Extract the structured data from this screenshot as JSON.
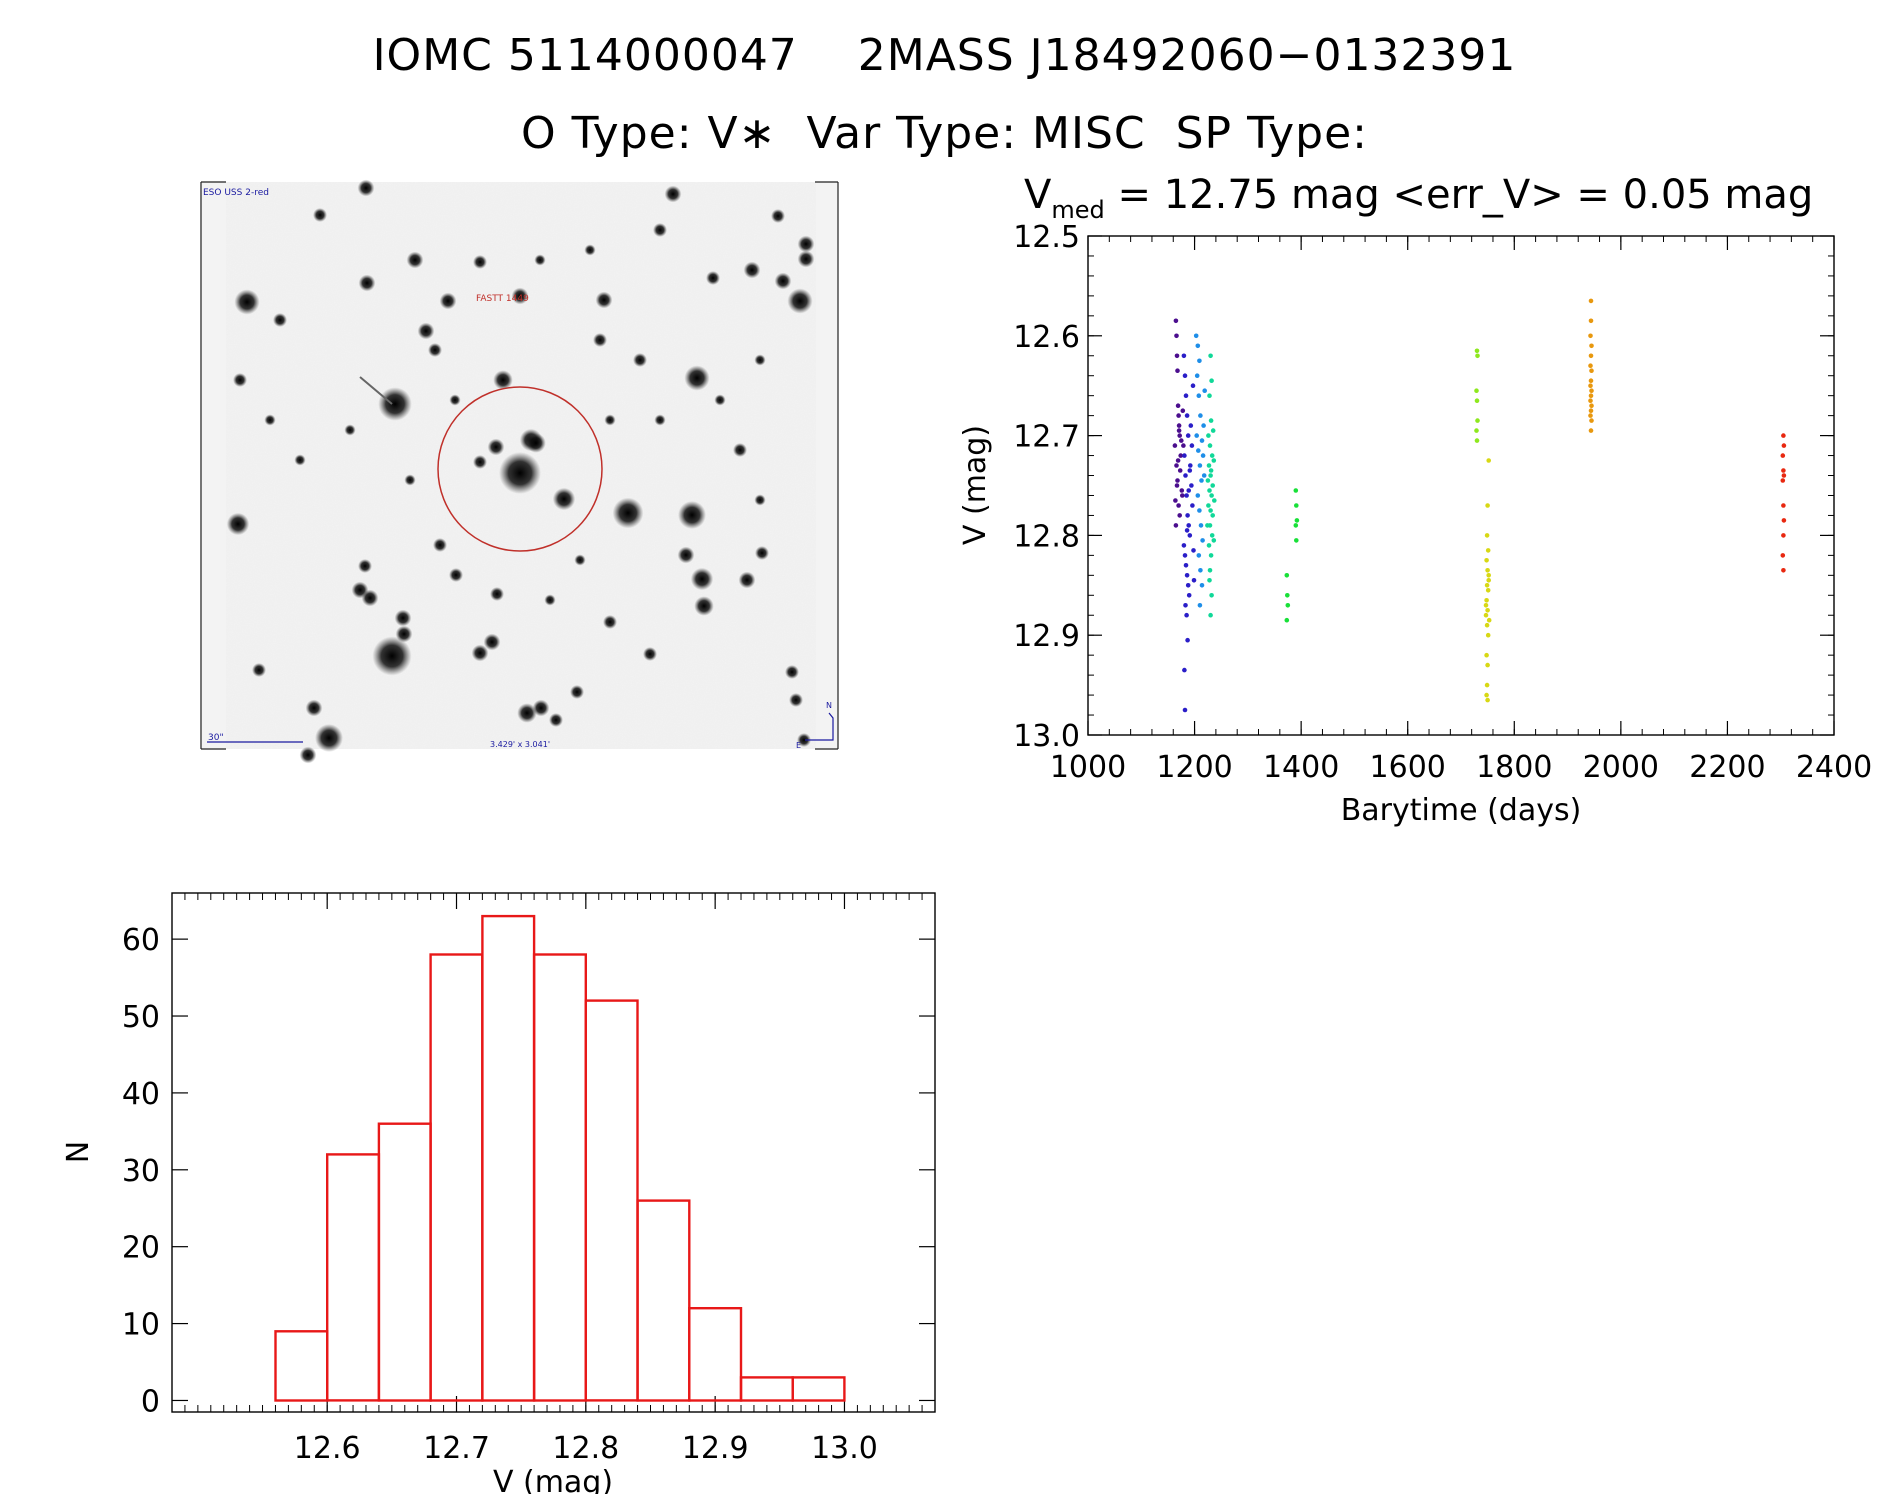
{
  "header": {
    "line1": "IOMC 5114000047    2MASS J18492060−0132391",
    "line2": "O Type: V∗  Var Type: MISC  SP Type:"
  },
  "finder_chart": {
    "survey_label": "ESO USS 2-red",
    "target_label": "FASTT 1449",
    "scale_label": "30\"",
    "fov_label": "3.429' x 3.041'",
    "north_label": "N",
    "east_label": "E",
    "colors": {
      "circle": "#c0302a",
      "marker_text": "#1a1aa0",
      "target_text": "#c0302a"
    }
  },
  "chart_data": [
    {
      "type": "scatter",
      "title_prefix": "V",
      "title_sub": "med",
      "title_rest": " = 12.75 mag <err_V> = 0.05 mag",
      "xlabel": "Barytime (days)",
      "ylabel": "V (mag)",
      "xlim": [
        1000,
        2400
      ],
      "ylim": [
        12.5,
        13.0
      ],
      "y_inverted": true,
      "xticks": [
        1000,
        1200,
        1400,
        1600,
        1800,
        2000,
        2200,
        2400
      ],
      "xtick_labels": [
        "1000",
        "1200",
        "1400",
        "1600",
        "1800",
        "2000",
        "2200",
        "2400"
      ],
      "yticks": [
        12.5,
        12.6,
        12.7,
        12.8,
        12.9,
        13.0
      ],
      "ytick_labels": [
        "12.5",
        "12.6",
        "12.7",
        "12.8",
        "12.9",
        "13.0"
      ],
      "series": [
        {
          "name": "s1",
          "color": "#4b0e8e",
          "x_min": 1163,
          "x_max": 1180,
          "points": [
            [
              1165,
              12.585
            ],
            [
              1166,
              12.6
            ],
            [
              1167,
              12.62
            ],
            [
              1168,
              12.635
            ],
            [
              1169,
              12.67
            ],
            [
              1170,
              12.68
            ],
            [
              1171,
              12.69
            ],
            [
              1172,
              12.7
            ],
            [
              1163,
              12.71
            ],
            [
              1174,
              12.72
            ],
            [
              1166,
              12.73
            ],
            [
              1168,
              12.745
            ],
            [
              1176,
              12.755
            ],
            [
              1170,
              12.77
            ],
            [
              1172,
              12.78
            ],
            [
              1165,
              12.79
            ],
            [
              1178,
              12.675
            ],
            [
              1175,
              12.705
            ],
            [
              1173,
              12.735
            ],
            [
              1177,
              12.76
            ],
            [
              1169,
              12.725
            ],
            [
              1171,
              12.695
            ],
            [
              1167,
              12.75
            ],
            [
              1179,
              12.71
            ],
            [
              1164,
              12.765
            ]
          ]
        },
        {
          "name": "s2",
          "color": "#2a1ec8",
          "x_min": 1178,
          "x_max": 1200,
          "points": [
            [
              1180,
              12.62
            ],
            [
              1182,
              12.64
            ],
            [
              1184,
              12.66
            ],
            [
              1186,
              12.68
            ],
            [
              1188,
              12.7
            ],
            [
              1181,
              12.72
            ],
            [
              1183,
              12.74
            ],
            [
              1185,
              12.76
            ],
            [
              1187,
              12.78
            ],
            [
              1189,
              12.79
            ],
            [
              1191,
              12.8
            ],
            [
              1180,
              12.81
            ],
            [
              1182,
              12.82
            ],
            [
              1184,
              12.83
            ],
            [
              1186,
              12.84
            ],
            [
              1188,
              12.85
            ],
            [
              1190,
              12.86
            ],
            [
              1183,
              12.87
            ],
            [
              1185,
              12.88
            ],
            [
              1187,
              12.905
            ],
            [
              1181,
              12.935
            ],
            [
              1182,
              12.975
            ],
            [
              1192,
              12.73
            ],
            [
              1194,
              12.75
            ],
            [
              1196,
              12.77
            ],
            [
              1193,
              12.69
            ],
            [
              1195,
              12.71
            ],
            [
              1197,
              12.65
            ],
            [
              1198,
              12.815
            ],
            [
              1199,
              12.845
            ],
            [
              1189,
              12.755
            ],
            [
              1191,
              12.735
            ],
            [
              1186,
              12.795
            ]
          ]
        },
        {
          "name": "s3",
          "color": "#1e8ee8",
          "x_min": 1200,
          "x_max": 1222,
          "points": [
            [
              1203,
              12.6
            ],
            [
              1206,
              12.61
            ],
            [
              1209,
              12.625
            ],
            [
              1205,
              12.64
            ],
            [
              1208,
              12.66
            ],
            [
              1211,
              12.68
            ],
            [
              1204,
              12.7
            ],
            [
              1207,
              12.715
            ],
            [
              1210,
              12.73
            ],
            [
              1213,
              12.745
            ],
            [
              1206,
              12.76
            ],
            [
              1209,
              12.775
            ],
            [
              1212,
              12.79
            ],
            [
              1215,
              12.805
            ],
            [
              1208,
              12.82
            ],
            [
              1211,
              12.835
            ],
            [
              1214,
              12.85
            ],
            [
              1210,
              12.87
            ],
            [
              1216,
              12.72
            ],
            [
              1218,
              12.74
            ],
            [
              1217,
              12.69
            ],
            [
              1219,
              12.655
            ],
            [
              1214,
              12.705
            ]
          ]
        },
        {
          "name": "s4",
          "color": "#10d898",
          "x_min": 1220,
          "x_max": 1238,
          "points": [
            [
              1230,
              12.62
            ],
            [
              1232,
              12.645
            ],
            [
              1228,
              12.66
            ],
            [
              1231,
              12.685
            ],
            [
              1226,
              12.7
            ],
            [
              1229,
              12.71
            ],
            [
              1233,
              12.72
            ],
            [
              1227,
              12.73
            ],
            [
              1230,
              12.74
            ],
            [
              1234,
              12.75
            ],
            [
              1228,
              12.755
            ],
            [
              1232,
              12.76
            ],
            [
              1226,
              12.77
            ],
            [
              1230,
              12.775
            ],
            [
              1234,
              12.78
            ],
            [
              1229,
              12.79
            ],
            [
              1233,
              12.8
            ],
            [
              1227,
              12.81
            ],
            [
              1231,
              12.82
            ],
            [
              1229,
              12.835
            ],
            [
              1232,
              12.86
            ],
            [
              1230,
              12.88
            ],
            [
              1235,
              12.695
            ],
            [
              1236,
              12.725
            ],
            [
              1225,
              12.745
            ],
            [
              1237,
              12.765
            ],
            [
              1224,
              12.79
            ],
            [
              1236,
              12.805
            ],
            [
              1228,
              12.845
            ],
            [
              1231,
              12.735
            ]
          ]
        },
        {
          "name": "s5",
          "color": "#18e038",
          "x_min": 1370,
          "x_max": 1395,
          "points": [
            [
              1373,
              12.84
            ],
            [
              1374,
              12.86
            ],
            [
              1375,
              12.87
            ],
            [
              1373,
              12.885
            ],
            [
              1390,
              12.755
            ],
            [
              1391,
              12.77
            ],
            [
              1392,
              12.785
            ],
            [
              1390,
              12.79
            ],
            [
              1391,
              12.805
            ]
          ]
        },
        {
          "name": "s6",
          "color": "#8ee81e",
          "x_min": 1725,
          "x_max": 1735,
          "points": [
            [
              1730,
              12.615
            ],
            [
              1731,
              12.62
            ],
            [
              1729,
              12.655
            ],
            [
              1730,
              12.665
            ],
            [
              1731,
              12.685
            ],
            [
              1729,
              12.695
            ],
            [
              1730,
              12.705
            ]
          ]
        },
        {
          "name": "s7",
          "color": "#d8d814",
          "x_min": 1740,
          "x_max": 1760,
          "points": [
            [
              1752,
              12.725
            ],
            [
              1750,
              12.77
            ],
            [
              1749,
              12.8
            ],
            [
              1751,
              12.815
            ],
            [
              1748,
              12.825
            ],
            [
              1750,
              12.835
            ],
            [
              1752,
              12.84
            ],
            [
              1749,
              12.85
            ],
            [
              1751,
              12.855
            ],
            [
              1748,
              12.865
            ],
            [
              1750,
              12.875
            ],
            [
              1747,
              12.88
            ],
            [
              1749,
              12.89
            ],
            [
              1751,
              12.9
            ],
            [
              1748,
              12.92
            ],
            [
              1750,
              12.93
            ],
            [
              1749,
              12.95
            ],
            [
              1748,
              12.96
            ],
            [
              1750,
              12.965
            ],
            [
              1752,
              12.845
            ],
            [
              1747,
              12.87
            ],
            [
              1753,
              12.885
            ]
          ]
        },
        {
          "name": "s8",
          "color": "#e8980e",
          "x_min": 1940,
          "x_max": 1950,
          "points": [
            [
              1944,
              12.565
            ],
            [
              1944,
              12.585
            ],
            [
              1943,
              12.6
            ],
            [
              1945,
              12.61
            ],
            [
              1944,
              12.62
            ],
            [
              1943,
              12.63
            ],
            [
              1945,
              12.635
            ],
            [
              1944,
              12.645
            ],
            [
              1943,
              12.65
            ],
            [
              1945,
              12.655
            ],
            [
              1944,
              12.66
            ],
            [
              1943,
              12.665
            ],
            [
              1945,
              12.67
            ],
            [
              1944,
              12.675
            ],
            [
              1943,
              12.68
            ],
            [
              1945,
              12.685
            ],
            [
              1944,
              12.695
            ]
          ]
        },
        {
          "name": "s9",
          "color": "#e82810",
          "x_min": 2300,
          "x_max": 2310,
          "points": [
            [
              2305,
              12.7
            ],
            [
              2306,
              12.71
            ],
            [
              2304,
              12.72
            ],
            [
              2305,
              12.735
            ],
            [
              2306,
              12.74
            ],
            [
              2304,
              12.745
            ],
            [
              2305,
              12.77
            ],
            [
              2306,
              12.785
            ],
            [
              2305,
              12.8
            ],
            [
              2304,
              12.82
            ],
            [
              2305,
              12.835
            ]
          ]
        }
      ]
    },
    {
      "type": "bar",
      "subtype": "histogram",
      "xlabel": "V (mag)",
      "ylabel": "N",
      "xlim": [
        12.48,
        13.07
      ],
      "ylim": [
        -1.5,
        66
      ],
      "bin_width": 0.04,
      "bin_edges": [
        12.56,
        12.6,
        12.64,
        12.68,
        12.72,
        12.76,
        12.8,
        12.84,
        12.88,
        12.92,
        12.96,
        13.0
      ],
      "values": [
        9,
        32,
        36,
        58,
        63,
        58,
        52,
        26,
        12,
        3,
        3
      ],
      "color": "#e81818",
      "xticks": [
        12.6,
        12.7,
        12.8,
        12.9,
        13.0
      ],
      "xtick_labels": [
        "12.6",
        "12.7",
        "12.8",
        "12.9",
        "13.0"
      ],
      "yticks": [
        0,
        10,
        20,
        30,
        40,
        50,
        60
      ],
      "ytick_labels": [
        "0",
        "10",
        "20",
        "30",
        "40",
        "50",
        "60"
      ]
    }
  ]
}
